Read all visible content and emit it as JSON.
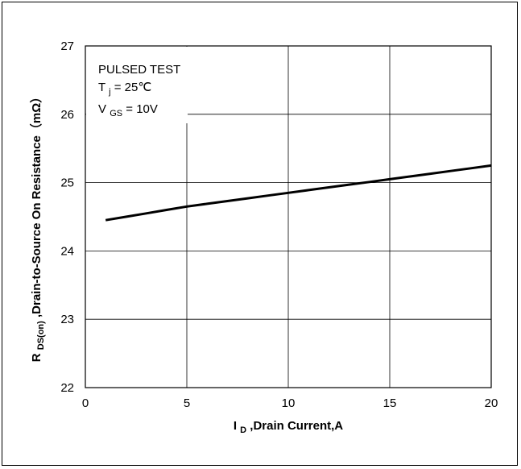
{
  "chart_data": {
    "type": "line",
    "xlabel": {
      "main": "I",
      "sub": "D",
      "rest": ",Drain Current,A"
    },
    "ylabel": {
      "main": "R",
      "sub": "DS(on)",
      "rest": ",Drain-to-Source On Resistance（mΩ）"
    },
    "xlim": [
      0,
      20
    ],
    "ylim": [
      22,
      27
    ],
    "xticks": [
      0,
      5,
      10,
      15,
      20
    ],
    "yticks": [
      22,
      23,
      24,
      25,
      26,
      27
    ],
    "grid": true,
    "annotations": {
      "line1": "PULSED TEST",
      "line2": {
        "main": "T",
        "sub": "j",
        "rest": " = 25℃"
      },
      "line3": {
        "main": "V",
        "sub": "GS",
        "rest": " = 10V"
      }
    },
    "series": [
      {
        "x": [
          1,
          2,
          3,
          4,
          5,
          6,
          7,
          8,
          9,
          10,
          11,
          12,
          13,
          14,
          15,
          16,
          17,
          18,
          19,
          20
        ],
        "y": [
          24.45,
          24.5,
          24.55,
          24.6,
          24.65,
          24.69,
          24.73,
          24.77,
          24.81,
          24.85,
          24.89,
          24.93,
          24.97,
          25.01,
          25.05,
          25.09,
          25.13,
          25.17,
          25.21,
          25.25
        ]
      }
    ],
    "colors": {
      "line": "#000000",
      "grid": "#000000",
      "background": "#ffffff"
    }
  }
}
